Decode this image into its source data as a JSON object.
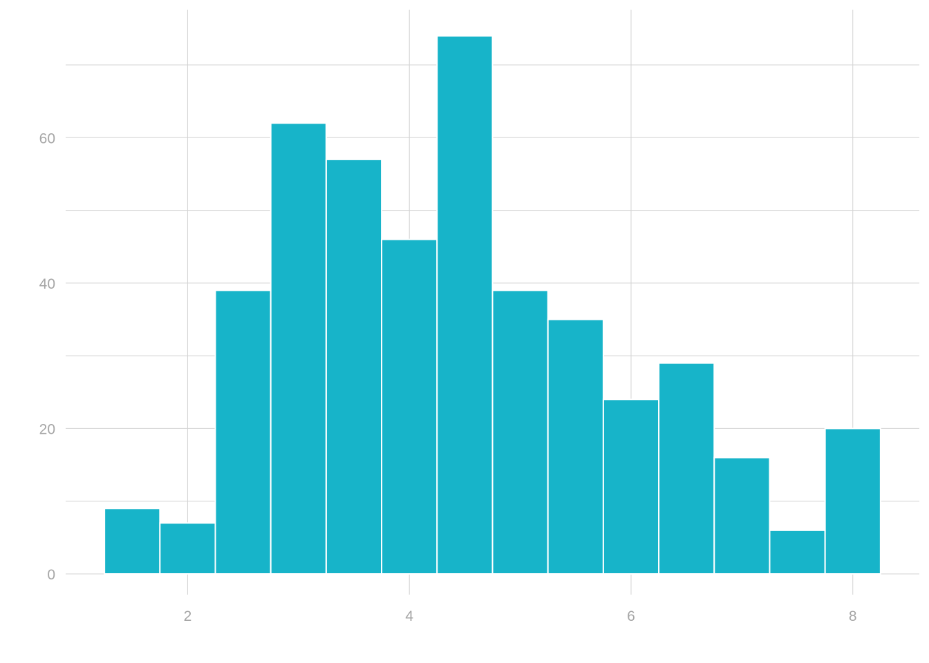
{
  "chart_data": {
    "type": "bar",
    "subtype": "histogram",
    "title": "",
    "xlabel": "",
    "ylabel": "",
    "bar_color": "#17b4c9",
    "bin_width": 0.5,
    "bins": [
      {
        "x0": 1.25,
        "x1": 1.75,
        "count": 9
      },
      {
        "x0": 1.75,
        "x1": 2.25,
        "count": 7
      },
      {
        "x0": 2.25,
        "x1": 2.75,
        "count": 39
      },
      {
        "x0": 2.75,
        "x1": 3.25,
        "count": 62
      },
      {
        "x0": 3.25,
        "x1": 3.75,
        "count": 57
      },
      {
        "x0": 3.75,
        "x1": 4.25,
        "count": 46
      },
      {
        "x0": 4.25,
        "x1": 4.75,
        "count": 74
      },
      {
        "x0": 4.75,
        "x1": 5.25,
        "count": 39
      },
      {
        "x0": 5.25,
        "x1": 5.75,
        "count": 35
      },
      {
        "x0": 5.75,
        "x1": 6.25,
        "count": 24
      },
      {
        "x0": 6.25,
        "x1": 6.75,
        "count": 29
      },
      {
        "x0": 6.75,
        "x1": 7.25,
        "count": 16
      },
      {
        "x0": 7.25,
        "x1": 7.75,
        "count": 6
      },
      {
        "x0": 7.75,
        "x1": 8.25,
        "count": 20
      }
    ],
    "xlim": [
      0.9,
      8.6
    ],
    "ylim": [
      0,
      77.6
    ],
    "x_ticks": [
      2,
      4,
      6,
      8
    ],
    "x_tick_labels": [
      "2",
      "4",
      "6",
      "8"
    ],
    "y_ticks": [
      0,
      20,
      40,
      60
    ],
    "y_tick_labels": [
      "0",
      "20",
      "40",
      "60"
    ],
    "y_minor_gridlines": [
      10,
      30,
      50,
      70
    ],
    "grid": true,
    "legend": "none"
  }
}
